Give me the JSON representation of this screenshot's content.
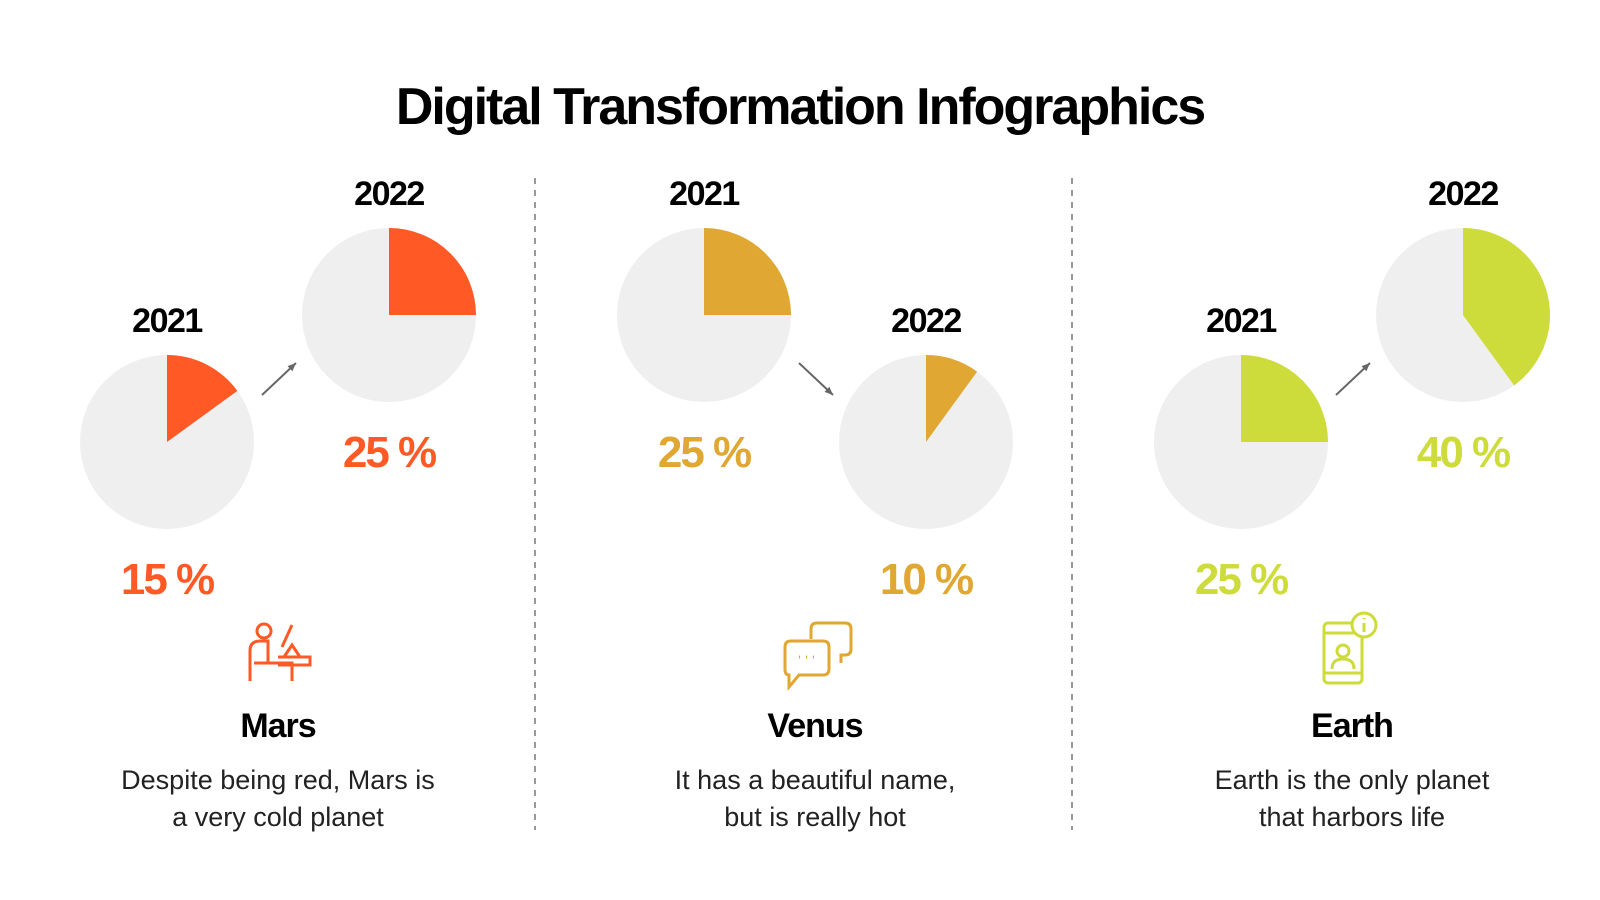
{
  "title": "Digital Transformation Infographics",
  "colors": {
    "track": "#EFEFEF",
    "arrow": "#666666",
    "divider": "#999999"
  },
  "chart_data": [
    {
      "type": "pie",
      "name": "Mars",
      "color": "#FF5A26",
      "icon": "teacher-desk-icon",
      "description_lines": [
        "Despite being red, Mars is",
        "a very cold planet"
      ],
      "points": [
        {
          "year": "2021",
          "value": 15,
          "label": "15 %"
        },
        {
          "year": "2022",
          "value": 25,
          "label": "25 %"
        }
      ],
      "trend": "up"
    },
    {
      "type": "pie",
      "name": "Venus",
      "color": "#E0A733",
      "icon": "chat-bubbles-icon",
      "description_lines": [
        "It has a beautiful name,",
        "but is really hot"
      ],
      "points": [
        {
          "year": "2021",
          "value": 25,
          "label": "25 %"
        },
        {
          "year": "2022",
          "value": 10,
          "label": "10 %"
        }
      ],
      "trend": "down"
    },
    {
      "type": "pie",
      "name": "Earth",
      "color": "#CDDC3A",
      "icon": "mobile-info-icon",
      "description_lines": [
        "Earth is the only planet",
        "that harbors life"
      ],
      "points": [
        {
          "year": "2021",
          "value": 25,
          "label": "25 %"
        },
        {
          "year": "2022",
          "value": 40,
          "label": "40 %"
        }
      ],
      "trend": "up"
    }
  ]
}
